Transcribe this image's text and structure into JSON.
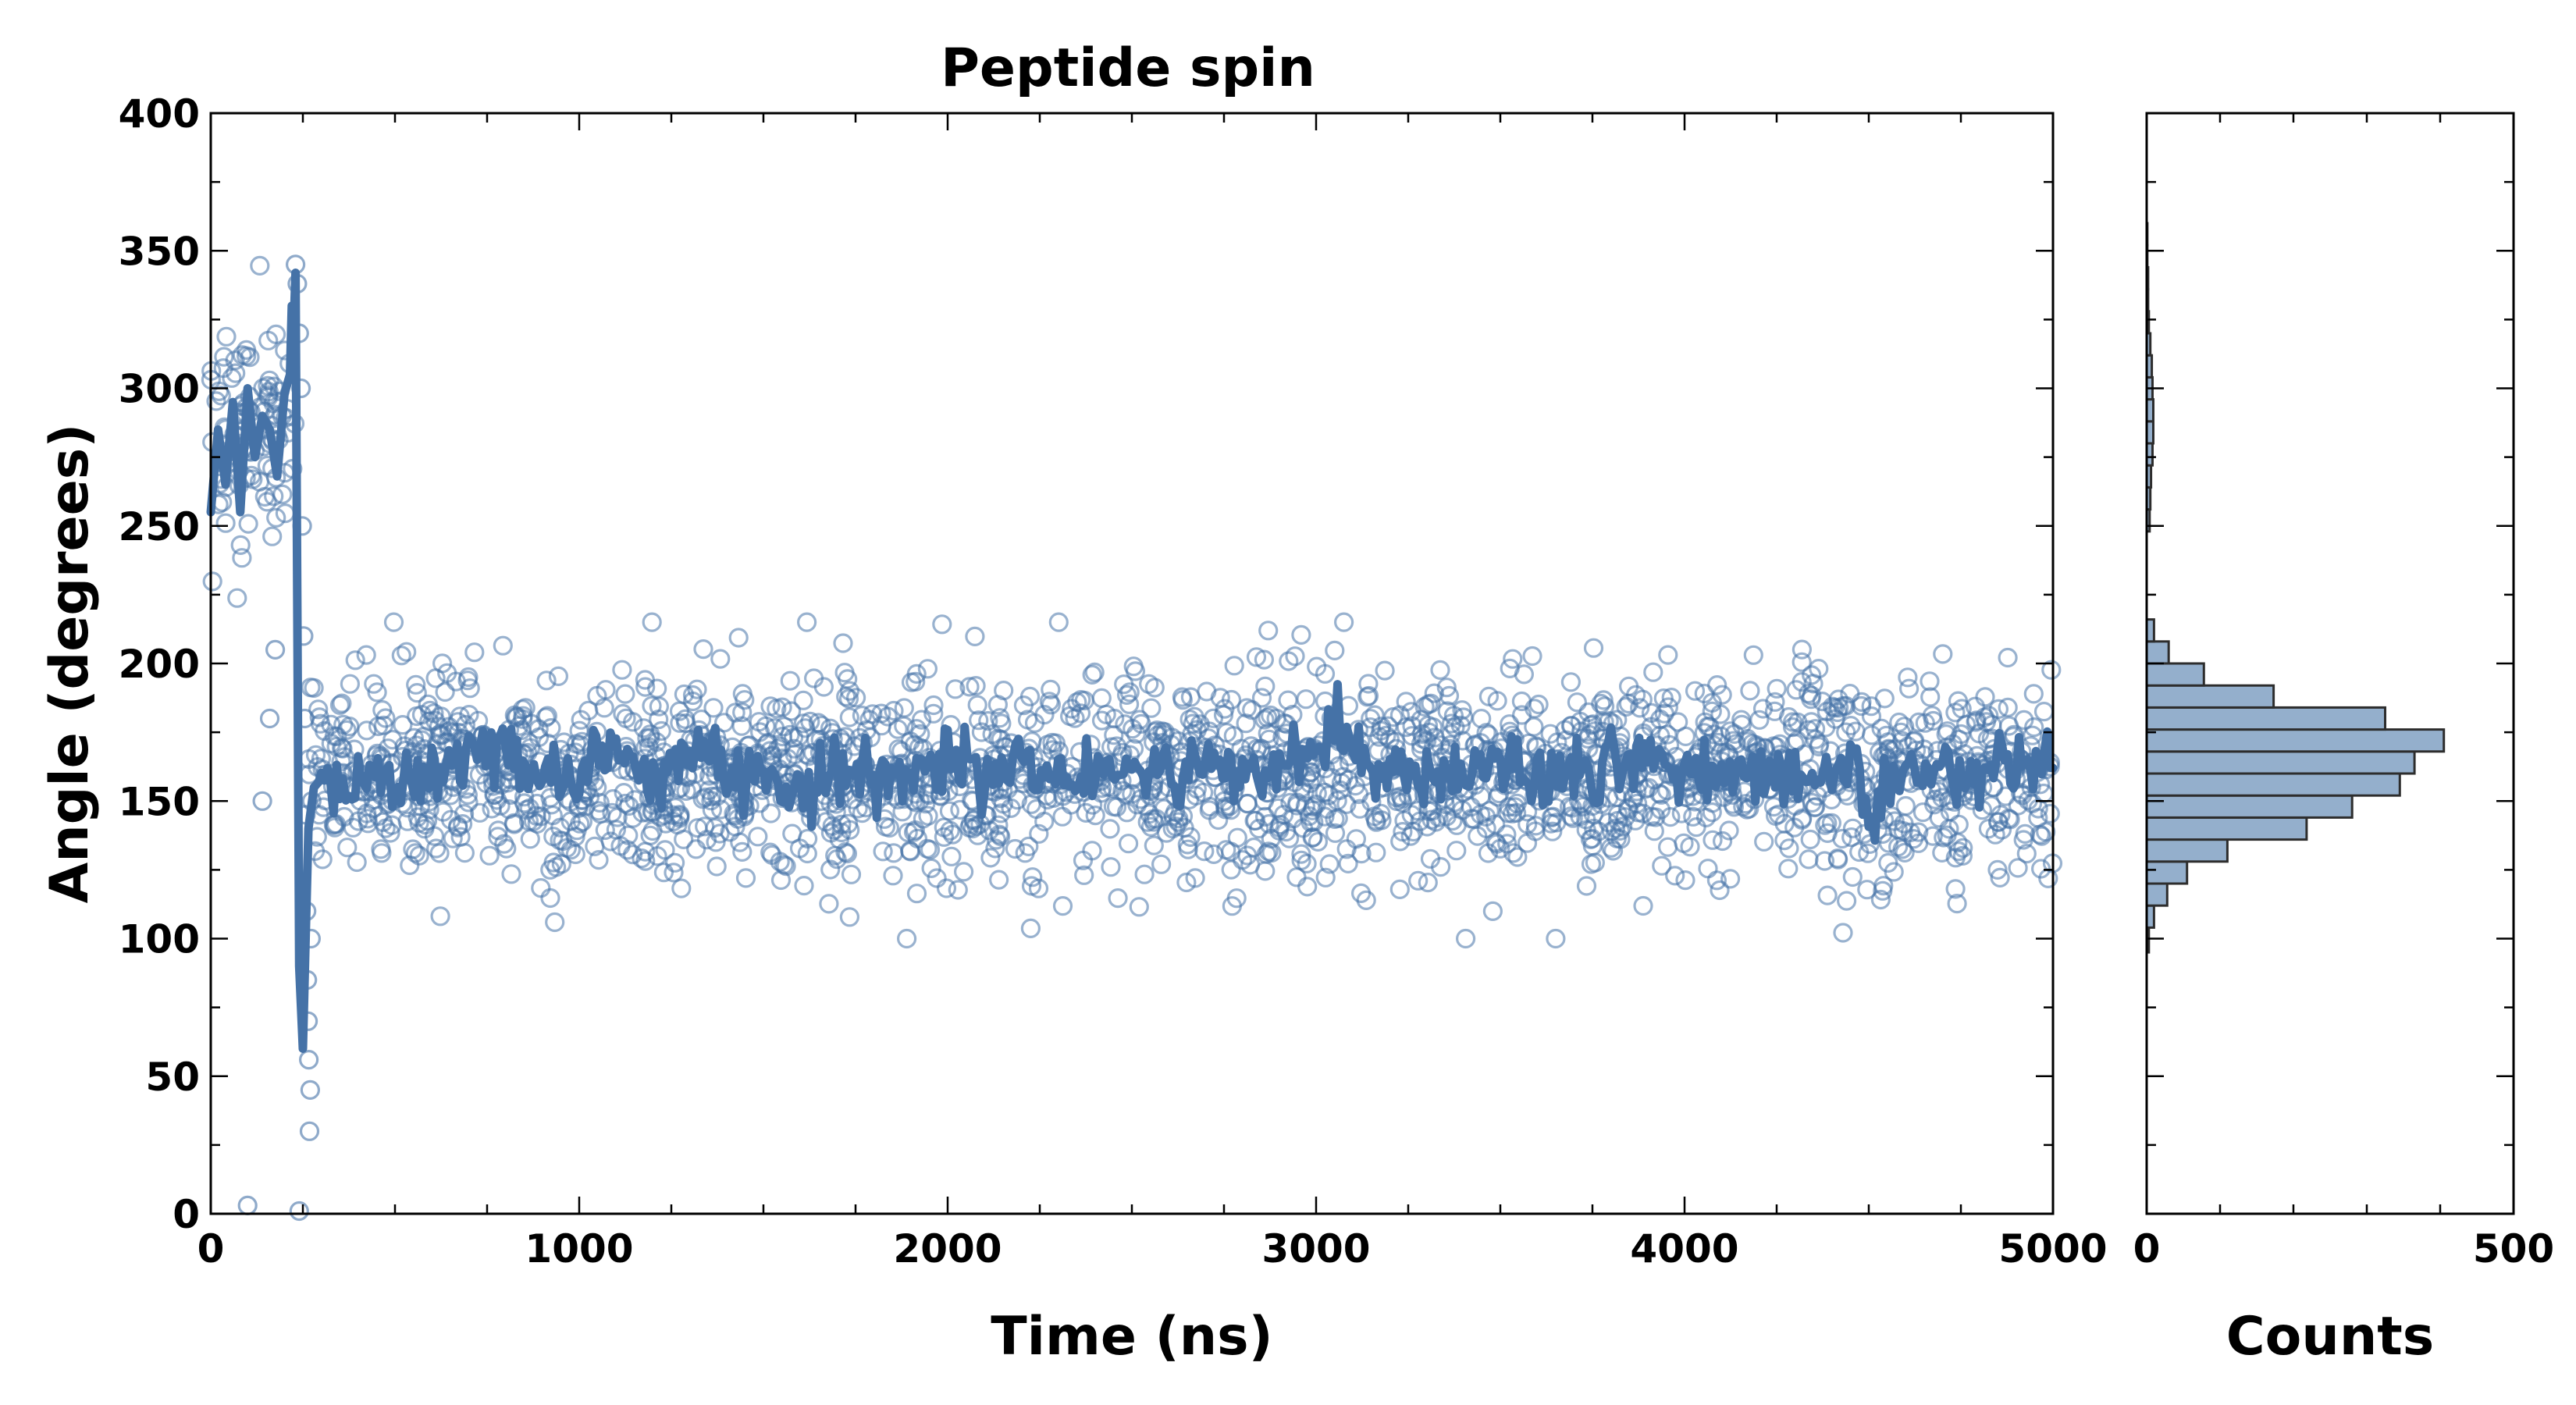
{
  "chart_data": {
    "type": "scatter",
    "title": "Peptide spin",
    "xlabel": "Time (ns)",
    "ylabel": "Angle (degrees)",
    "xlim": [
      0,
      5000
    ],
    "ylim": [
      0,
      400
    ],
    "x_ticks": [
      "0",
      "1000",
      "2000",
      "3000",
      "4000",
      "5000"
    ],
    "y_ticks": [
      "0",
      "50",
      "100",
      "150",
      "200",
      "250",
      "300",
      "350",
      "400"
    ],
    "grid": false,
    "series": [
      {
        "name": "",
        "style": "open circles",
        "color": "#4572a7",
        "description_note": "",
        "segments": [
          {
            "x_range": [
              0,
              230
            ],
            "y_range": [
              0,
              360
            ],
            "center": 285,
            "spread": 20
          },
          {
            "x_range": [
              230,
              265
            ],
            "y_range": [
              25,
              345
            ],
            "transition": true
          },
          {
            "x_range": [
              265,
              5000
            ],
            "y_range": [
              100,
              215
            ],
            "center": 160,
            "spread": 18
          }
        ]
      },
      {
        "name": "",
        "style": "running average line",
        "color": "#4572a7",
        "points": [
          [
            0,
            255
          ],
          [
            20,
            285
          ],
          [
            40,
            265
          ],
          [
            60,
            295
          ],
          [
            80,
            255
          ],
          [
            100,
            300
          ],
          [
            120,
            275
          ],
          [
            140,
            290
          ],
          [
            160,
            285
          ],
          [
            180,
            268
          ],
          [
            200,
            298
          ],
          [
            215,
            305
          ],
          [
            220,
            330
          ],
          [
            225,
            322
          ],
          [
            230,
            342
          ],
          [
            240,
            90
          ],
          [
            250,
            60
          ],
          [
            265,
            140
          ],
          [
            280,
            155
          ],
          [
            300,
            158
          ],
          [
            350,
            160
          ],
          [
            400,
            155
          ],
          [
            500,
            162
          ],
          [
            600,
            158
          ],
          [
            700,
            165
          ],
          [
            800,
            170
          ],
          [
            900,
            155
          ],
          [
            1000,
            162
          ],
          [
            1100,
            168
          ],
          [
            1200,
            158
          ],
          [
            1300,
            165
          ],
          [
            1400,
            160
          ],
          [
            1500,
            163
          ],
          [
            1600,
            150
          ],
          [
            1700,
            160
          ],
          [
            1800,
            162
          ],
          [
            1900,
            158
          ],
          [
            2000,
            165
          ],
          [
            2100,
            160
          ],
          [
            2200,
            163
          ],
          [
            2300,
            158
          ],
          [
            2400,
            155
          ],
          [
            2500,
            162
          ],
          [
            2600,
            160
          ],
          [
            2700,
            163
          ],
          [
            2800,
            160
          ],
          [
            2900,
            165
          ],
          [
            3000,
            170
          ],
          [
            3050,
            180
          ],
          [
            3100,
            168
          ],
          [
            3200,
            162
          ],
          [
            3300,
            158
          ],
          [
            3400,
            160
          ],
          [
            3500,
            163
          ],
          [
            3600,
            158
          ],
          [
            3700,
            162
          ],
          [
            3800,
            160
          ],
          [
            3900,
            165
          ],
          [
            4000,
            160
          ],
          [
            4100,
            158
          ],
          [
            4200,
            163
          ],
          [
            4300,
            160
          ],
          [
            4400,
            158
          ],
          [
            4450,
            170
          ],
          [
            4500,
            140
          ],
          [
            4550,
            158
          ],
          [
            4600,
            160
          ],
          [
            4700,
            163
          ],
          [
            4800,
            160
          ],
          [
            4900,
            165
          ],
          [
            5000,
            162
          ]
        ]
      }
    ],
    "histogram": {
      "xlabel": "Counts",
      "xlim": [
        0,
        500
      ],
      "x_ticks": [
        "0",
        "500"
      ],
      "orientation": "horizontal",
      "color": "#94afcc",
      "edge_color": "#2d2d2d",
      "bins": [
        {
          "y_from": 95,
          "y_to": 104,
          "count": 3
        },
        {
          "y_from": 104,
          "y_to": 112,
          "count": 10
        },
        {
          "y_from": 112,
          "y_to": 120,
          "count": 28
        },
        {
          "y_from": 120,
          "y_to": 128,
          "count": 55
        },
        {
          "y_from": 128,
          "y_to": 136,
          "count": 110
        },
        {
          "y_from": 136,
          "y_to": 144,
          "count": 218
        },
        {
          "y_from": 144,
          "y_to": 152,
          "count": 280
        },
        {
          "y_from": 152,
          "y_to": 160,
          "count": 345
        },
        {
          "y_from": 160,
          "y_to": 168,
          "count": 365
        },
        {
          "y_from": 168,
          "y_to": 176,
          "count": 405
        },
        {
          "y_from": 176,
          "y_to": 184,
          "count": 325
        },
        {
          "y_from": 184,
          "y_to": 192,
          "count": 173
        },
        {
          "y_from": 192,
          "y_to": 200,
          "count": 78
        },
        {
          "y_from": 200,
          "y_to": 208,
          "count": 30
        },
        {
          "y_from": 208,
          "y_to": 216,
          "count": 10
        },
        {
          "y_from": 248,
          "y_to": 256,
          "count": 4
        },
        {
          "y_from": 256,
          "y_to": 264,
          "count": 5
        },
        {
          "y_from": 264,
          "y_to": 272,
          "count": 6
        },
        {
          "y_from": 272,
          "y_to": 280,
          "count": 8
        },
        {
          "y_from": 280,
          "y_to": 288,
          "count": 9
        },
        {
          "y_from": 288,
          "y_to": 296,
          "count": 9
        },
        {
          "y_from": 296,
          "y_to": 304,
          "count": 8
        },
        {
          "y_from": 304,
          "y_to": 312,
          "count": 7
        },
        {
          "y_from": 312,
          "y_to": 320,
          "count": 5
        },
        {
          "y_from": 320,
          "y_to": 328,
          "count": 3
        },
        {
          "y_from": 328,
          "y_to": 336,
          "count": 2
        },
        {
          "y_from": 336,
          "y_to": 344,
          "count": 2
        },
        {
          "y_from": 344,
          "y_to": 352,
          "count": 1
        },
        {
          "y_from": 352,
          "y_to": 360,
          "count": 1
        }
      ]
    }
  }
}
